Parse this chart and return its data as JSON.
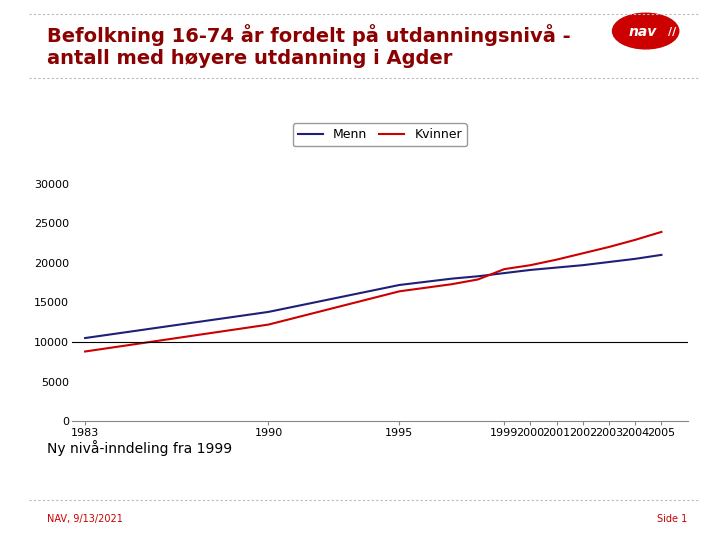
{
  "title_line1": "Befolkning 16-74 år fordelt på utdanningsnivå -",
  "title_line2": "antall med høyere utdanning i Agder",
  "title_color": "#8B0000",
  "footer_left": "NAV, 9/13/2021",
  "footer_right": "Side 1",
  "footnote": "Ny nivå-inndeling fra 1999",
  "legend_menn": "Menn",
  "legend_kvinner": "Kvinner",
  "menn_color": "#1f1f7a",
  "kvinner_color": "#cc0000",
  "years": [
    1983,
    1990,
    1995,
    1997,
    1998,
    1999,
    2000,
    2001,
    2002,
    2003,
    2004,
    2005
  ],
  "menn_data": [
    10500,
    13800,
    17200,
    18000,
    18300,
    18700,
    19100,
    19400,
    19700,
    20100,
    20500,
    21000
  ],
  "kvinner_data": [
    8800,
    12200,
    16400,
    17300,
    17900,
    19200,
    19700,
    20400,
    21200,
    22000,
    22900,
    23900
  ],
  "yticks": [
    0,
    5000,
    10000,
    15000,
    20000,
    25000,
    30000
  ],
  "xticks": [
    1983,
    1990,
    1995,
    1999,
    2000,
    2001,
    2002,
    2003,
    2004,
    2005
  ],
  "ylim": [
    0,
    30000
  ],
  "xlim": [
    1982.5,
    2006
  ],
  "hline_y": 10000,
  "background_color": "#ffffff",
  "plot_bg": "#ffffff",
  "line_width": 1.5,
  "title_fontsize": 14,
  "axis_fontsize": 8,
  "legend_fontsize": 9,
  "footnote_fontsize": 10,
  "footer_fontsize": 7,
  "border_color": "#aaaaaa",
  "nav_logo_color": "#cc0000"
}
